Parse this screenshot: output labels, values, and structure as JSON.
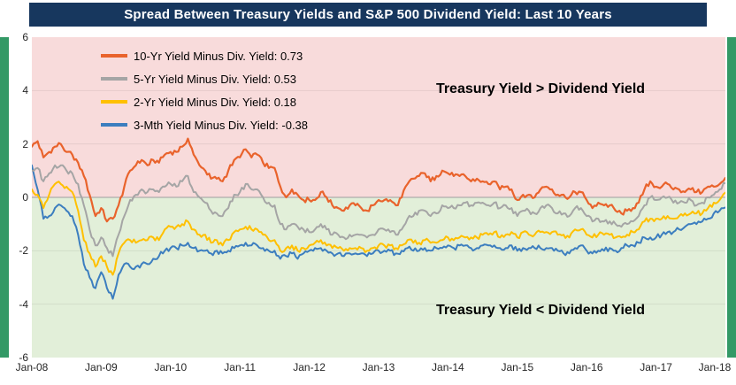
{
  "title_bar": {
    "text": "Spread Between Treasury Yields and S&P 500 Dividend Yield: Last 10 Years",
    "bg_color": "#17375E",
    "text_color": "#FFFFFF"
  },
  "border_strip_color": "#339966",
  "chart_data": {
    "type": "line",
    "title": "Spread Between Treasury Yields and S&P 500 Dividend Yield: Last 10 Years",
    "x_unit": "monthly",
    "x_tick_labels": [
      "Jan-08",
      "Jan-09",
      "Jan-10",
      "Jan-11",
      "Jan-12",
      "Jan-13",
      "Jan-14",
      "Jan-15",
      "Jan-16",
      "Jan-17",
      "Jan-18"
    ],
    "y_ticks": [
      6,
      4,
      2,
      0,
      -2,
      -4,
      -6
    ],
    "ylim": [
      -6,
      6
    ],
    "grid": "horizontal-faint",
    "legend_position": "top-left-inside",
    "annotations": {
      "above": "Treasury Yield > Dividend Yield",
      "below": "Treasury Yield < Dividend Yield"
    },
    "background_regions": {
      "above_zero_color": "#F8DBDB",
      "below_zero_color": "#E2EFD9"
    },
    "zero_line_color": "#9E9E9E",
    "series": [
      {
        "name": "10-Yr Yield Minus Div. Yield",
        "legend": "10-Yr Yield Minus Div. Yield: 0.73",
        "last_value": 0.73,
        "color": "#E9632C",
        "values": [
          1.9,
          2.1,
          1.5,
          1.7,
          1.9,
          2.0,
          1.7,
          1.6,
          1.3,
          0.8,
          0.1,
          -0.7,
          -0.4,
          -0.9,
          -0.8,
          -0.3,
          0.4,
          1.0,
          1.2,
          1.4,
          1.2,
          1.4,
          1.3,
          1.6,
          1.7,
          1.7,
          1.9,
          2.2,
          1.6,
          1.2,
          1.0,
          0.7,
          0.7,
          0.6,
          1.0,
          1.4,
          1.5,
          1.8,
          1.5,
          1.6,
          1.3,
          1.1,
          1.1,
          0.4,
          0.0,
          0.3,
          0.1,
          -0.1,
          -0.1,
          -0.1,
          0.2,
          0.0,
          -0.3,
          -0.4,
          -0.5,
          -0.3,
          -0.3,
          -0.4,
          -0.5,
          -0.3,
          -0.1,
          -0.1,
          -0.1,
          -0.3,
          0.0,
          0.5,
          0.7,
          0.8,
          0.9,
          0.6,
          0.8,
          1.0,
          0.9,
          0.8,
          0.8,
          0.8,
          0.6,
          0.7,
          0.6,
          0.5,
          0.6,
          0.3,
          0.4,
          0.3,
          -0.1,
          0.1,
          0.1,
          0.0,
          0.3,
          0.4,
          0.3,
          0.1,
          0.1,
          0.0,
          0.2,
          0.2,
          -0.1,
          -0.4,
          -0.2,
          -0.3,
          -0.3,
          -0.5,
          -0.6,
          -0.5,
          -0.4,
          -0.2,
          0.3,
          0.6,
          0.4,
          0.4,
          0.5,
          0.3,
          0.3,
          0.2,
          0.3,
          0.2,
          0.2,
          0.4,
          0.4,
          0.5,
          0.73
        ]
      },
      {
        "name": "5-Yr Yield Minus Div. Yield",
        "legend": "5-Yr Yield Minus Div. Yield: 0.53",
        "last_value": 0.53,
        "color": "#A5A5A5",
        "values": [
          1.0,
          1.1,
          0.6,
          0.9,
          1.2,
          1.2,
          1.0,
          0.9,
          0.5,
          -0.3,
          -1.2,
          -1.8,
          -1.5,
          -1.9,
          -2.2,
          -1.4,
          -0.7,
          -0.1,
          0.1,
          0.3,
          0.2,
          0.3,
          0.2,
          0.4,
          0.5,
          0.4,
          0.6,
          0.8,
          0.2,
          0.0,
          -0.2,
          -0.5,
          -0.6,
          -0.7,
          -0.4,
          0.1,
          0.2,
          0.5,
          0.3,
          0.3,
          0.0,
          -0.2,
          -0.3,
          -1.0,
          -1.2,
          -1.0,
          -1.1,
          -1.2,
          -1.3,
          -1.2,
          -1.0,
          -1.2,
          -1.4,
          -1.4,
          -1.5,
          -1.4,
          -1.4,
          -1.4,
          -1.5,
          -1.4,
          -1.2,
          -1.2,
          -1.3,
          -1.4,
          -1.2,
          -0.8,
          -0.7,
          -0.5,
          -0.5,
          -0.7,
          -0.6,
          -0.3,
          -0.4,
          -0.4,
          -0.3,
          -0.2,
          -0.3,
          -0.2,
          -0.2,
          -0.3,
          -0.2,
          -0.4,
          -0.3,
          -0.4,
          -0.7,
          -0.5,
          -0.5,
          -0.6,
          -0.4,
          -0.3,
          -0.4,
          -0.6,
          -0.6,
          -0.7,
          -0.4,
          -0.4,
          -0.7,
          -0.9,
          -0.8,
          -0.9,
          -0.9,
          -1.0,
          -1.1,
          -1.0,
          -0.9,
          -0.7,
          -0.3,
          0.0,
          -0.1,
          0.0,
          0.0,
          -0.2,
          -0.2,
          -0.2,
          -0.1,
          -0.3,
          -0.2,
          0.0,
          0.1,
          0.3,
          0.53
        ]
      },
      {
        "name": "2-Yr Yield Minus Div. Yield",
        "legend": "2-Yr Yield Minus Div. Yield: 0.18",
        "last_value": 0.18,
        "color": "#FFC000",
        "values": [
          0.3,
          0.1,
          -0.4,
          0.1,
          0.5,
          0.5,
          0.4,
          0.2,
          -0.5,
          -1.6,
          -2.1,
          -2.6,
          -2.2,
          -2.6,
          -2.9,
          -2.1,
          -1.7,
          -1.6,
          -1.7,
          -1.6,
          -1.6,
          -1.5,
          -1.6,
          -1.2,
          -1.1,
          -1.1,
          -1.0,
          -0.9,
          -1.2,
          -1.4,
          -1.4,
          -1.7,
          -1.6,
          -1.8,
          -1.6,
          -1.3,
          -1.2,
          -1.1,
          -1.2,
          -1.2,
          -1.4,
          -1.6,
          -1.6,
          -2.0,
          -1.9,
          -1.8,
          -2.0,
          -1.9,
          -1.8,
          -1.7,
          -1.6,
          -1.8,
          -1.9,
          -1.9,
          -2.0,
          -1.9,
          -1.9,
          -1.9,
          -2.0,
          -1.9,
          -1.8,
          -1.8,
          -1.8,
          -1.9,
          -1.8,
          -1.6,
          -1.7,
          -1.7,
          -1.6,
          -1.7,
          -1.7,
          -1.6,
          -1.5,
          -1.6,
          -1.5,
          -1.5,
          -1.5,
          -1.5,
          -1.4,
          -1.4,
          -1.3,
          -1.5,
          -1.4,
          -1.3,
          -1.5,
          -1.3,
          -1.4,
          -1.4,
          -1.3,
          -1.3,
          -1.3,
          -1.4,
          -1.4,
          -1.5,
          -1.2,
          -1.2,
          -1.4,
          -1.5,
          -1.4,
          -1.4,
          -1.4,
          -1.5,
          -1.5,
          -1.4,
          -1.3,
          -1.2,
          -0.9,
          -0.8,
          -0.8,
          -0.8,
          -0.7,
          -0.8,
          -0.7,
          -0.6,
          -0.6,
          -0.6,
          -0.6,
          -0.4,
          -0.2,
          -0.1,
          0.18
        ]
      },
      {
        "name": "3-Mth Yield Minus Div. Yield",
        "legend": "3-Mth Yield Minus Div. Yield: -0.38",
        "last_value": -0.38,
        "color": "#3C7EBF",
        "values": [
          1.2,
          0.3,
          -0.8,
          -0.7,
          -0.4,
          -0.3,
          -0.5,
          -0.7,
          -1.4,
          -2.5,
          -3.0,
          -3.4,
          -2.8,
          -3.4,
          -3.8,
          -2.9,
          -2.5,
          -2.6,
          -2.6,
          -2.5,
          -2.5,
          -2.3,
          -2.2,
          -2.0,
          -1.9,
          -1.9,
          -1.8,
          -1.7,
          -1.9,
          -2.0,
          -2.0,
          -2.1,
          -2.0,
          -2.1,
          -2.0,
          -1.9,
          -1.8,
          -1.7,
          -1.8,
          -1.8,
          -1.9,
          -2.0,
          -2.0,
          -2.3,
          -2.2,
          -2.1,
          -2.3,
          -2.1,
          -2.0,
          -1.9,
          -1.9,
          -2.0,
          -2.1,
          -2.1,
          -2.2,
          -2.1,
          -2.1,
          -2.1,
          -2.2,
          -2.1,
          -2.0,
          -2.0,
          -2.0,
          -2.1,
          -2.0,
          -1.9,
          -2.0,
          -2.0,
          -1.9,
          -2.0,
          -1.9,
          -1.9,
          -1.8,
          -1.9,
          -1.8,
          -1.8,
          -1.9,
          -1.9,
          -1.8,
          -1.8,
          -1.8,
          -1.9,
          -1.9,
          -1.8,
          -2.0,
          -1.9,
          -1.9,
          -1.9,
          -1.9,
          -1.9,
          -1.9,
          -2.0,
          -2.1,
          -2.1,
          -1.9,
          -1.8,
          -2.0,
          -2.1,
          -2.0,
          -2.0,
          -1.9,
          -2.0,
          -1.9,
          -1.8,
          -1.8,
          -1.7,
          -1.5,
          -1.5,
          -1.5,
          -1.4,
          -1.3,
          -1.3,
          -1.2,
          -1.1,
          -1.0,
          -1.0,
          -0.9,
          -0.8,
          -0.6,
          -0.5,
          -0.38
        ]
      }
    ]
  }
}
